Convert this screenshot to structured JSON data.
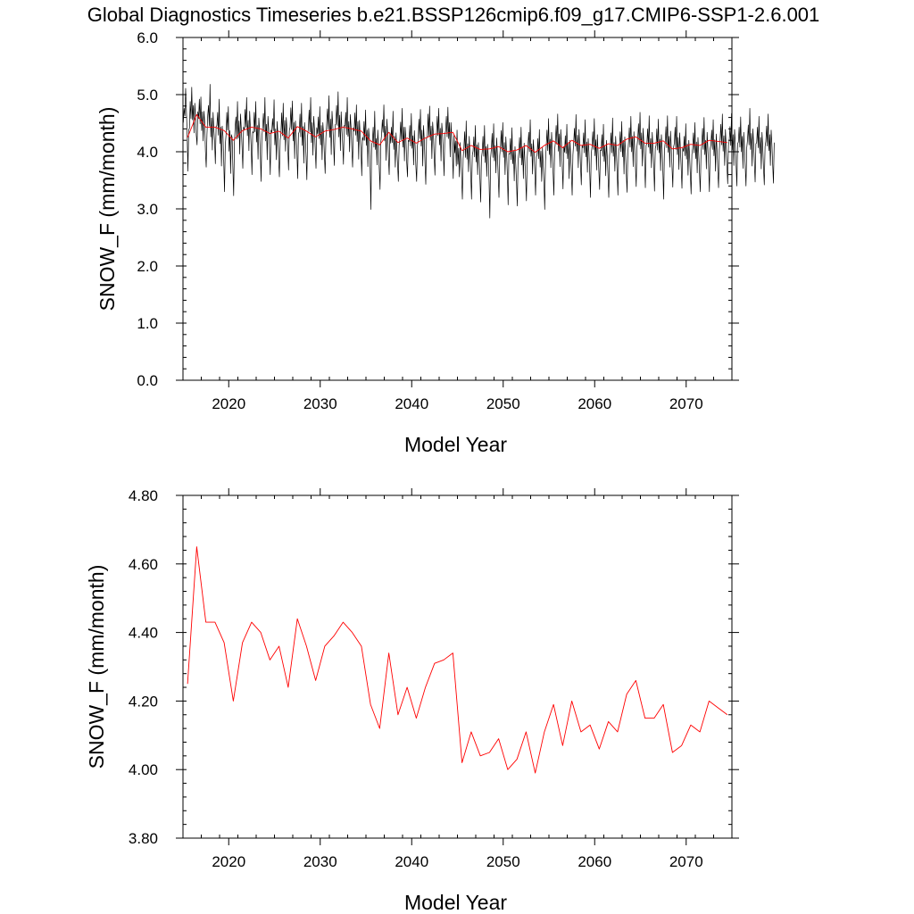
{
  "title": "Global Diagnostics Timeseries b.e21.BSSP126cmip6.f09_g17.CMIP6-SSP1-2.6.001",
  "colors": {
    "monthly": "#000000",
    "annual": "#ff0000",
    "axis": "#000000"
  },
  "chart_data": [
    {
      "type": "line",
      "xlabel": "Model Year",
      "ylabel": "SNOW_F (mm/month)",
      "xlim": [
        2015,
        2075
      ],
      "ylim": [
        0.0,
        6.0
      ],
      "x_ticks": [
        2020,
        2030,
        2040,
        2050,
        2060,
        2070
      ],
      "x_tick_labels": [
        "2020",
        "2030",
        "2040",
        "2050",
        "2060",
        "2070"
      ],
      "y_ticks": [
        0.0,
        1.0,
        2.0,
        3.0,
        4.0,
        5.0,
        6.0
      ],
      "y_tick_labels": [
        "0.0",
        "1.0",
        "2.0",
        "3.0",
        "4.0",
        "5.0",
        "6.0"
      ],
      "grid": false,
      "series": [
        {
          "color": "#000000",
          "x_start": 2015.04,
          "x_step": 0.0833333,
          "values": [
            4.51,
            4.76,
            4.63,
            5.11,
            4.72,
            4.31,
            3.66,
            4.38,
            4.41,
            4.88,
            4.58,
            5.13,
            4.56,
            4.81,
            4.33,
            4.85,
            4.64,
            4.29,
            4.12,
            4.7,
            4.58,
            4.92,
            4.49,
            4.96,
            4.37,
            4.7,
            4.19,
            4.71,
            4.52,
            4.01,
            3.73,
            4.31,
            4.64,
            4.81,
            4.45,
            5.18,
            4.26,
            4.59,
            4.03,
            4.69,
            4.38,
            4.17,
            3.79,
            4.44,
            4.46,
            4.69,
            4.29,
            4.92,
            4.14,
            4.43,
            3.75,
            4.45,
            4.27,
            3.83,
            3.3,
            4.11,
            4.29,
            4.69,
            4.38,
            4.79,
            4.01,
            4.37,
            3.62,
            4.3,
            4.25,
            3.71,
            3.23,
            4.15,
            4.45,
            4.61,
            4.22,
            4.88,
            4.24,
            4.54,
            3.96,
            4.66,
            4.4,
            4.09,
            3.71,
            4.43,
            4.38,
            4.74,
            4.43,
            4.95,
            4.28,
            4.55,
            4.02,
            4.71,
            4.39,
            4.08,
            3.6,
            4.35,
            4.33,
            4.69,
            4.35,
            4.88,
            4.17,
            4.46,
            3.87,
            4.59,
            4.36,
            3.96,
            3.48,
            4.26,
            4.42,
            4.67,
            4.35,
            4.95,
            4.19,
            4.48,
            3.86,
            4.62,
            4.38,
            4.04,
            3.6,
            4.38,
            4.34,
            4.58,
            4.37,
            4.91,
            4.12,
            4.4,
            3.86,
            4.53,
            4.28,
            3.86,
            3.56,
            4.2,
            4.32,
            4.68,
            4.28,
            4.85,
            4.21,
            4.55,
            4.01,
            4.6,
            4.39,
            4.07,
            3.68,
            4.37,
            4.43,
            4.77,
            4.39,
            4.89,
            4.19,
            4.51,
            3.88,
            4.54,
            4.3,
            3.97,
            3.53,
            4.31,
            4.35,
            4.66,
            4.26,
            4.85,
            4.11,
            4.44,
            3.8,
            4.51,
            4.24,
            3.9,
            3.51,
            4.28,
            4.42,
            4.73,
            4.35,
            4.95,
            4.16,
            4.51,
            3.94,
            4.62,
            4.4,
            4.04,
            3.71,
            4.42,
            4.31,
            4.61,
            4.23,
            4.79,
            4.12,
            4.46,
            3.86,
            4.51,
            4.29,
            3.94,
            3.62,
            4.25,
            4.5,
            4.75,
            4.39,
            4.98,
            4.25,
            4.57,
            3.95,
            4.71,
            4.46,
            4.17,
            3.76,
            4.47,
            4.48,
            4.81,
            4.46,
            5.05,
            4.26,
            4.64,
            4.02,
            4.7,
            4.38,
            4.13,
            3.78,
            4.46,
            4.45,
            4.69,
            4.3,
            4.95,
            4.27,
            4.53,
            4.0,
            4.65,
            4.42,
            4.05,
            3.73,
            4.42,
            4.36,
            4.68,
            4.29,
            4.82,
            4.18,
            4.53,
            3.87,
            4.55,
            4.27,
            4.05,
            3.58,
            4.25,
            4.2,
            4.53,
            4.2,
            4.73,
            4.11,
            4.38,
            3.74,
            4.41,
            4.23,
            3.72,
            2.99,
            4.13,
            4.17,
            4.43,
            4.08,
            4.71,
            4.04,
            4.23,
            3.77,
            4.38,
            4.1,
            3.7,
            3.34,
            4.17,
            4.29,
            4.56,
            4.34,
            4.82,
            4.19,
            4.45,
            3.85,
            4.57,
            4.31,
            3.89,
            3.6,
            4.33,
            4.15,
            4.43,
            4.16,
            4.71,
            4.04,
            4.27,
            3.73,
            4.33,
            4.05,
            3.78,
            3.48,
            4.11,
            4.23,
            4.52,
            4.21,
            4.76,
            4.08,
            4.43,
            3.84,
            4.43,
            4.2,
            3.81,
            3.56,
            4.2,
            4.18,
            4.46,
            4.1,
            4.67,
            4.06,
            4.28,
            3.77,
            4.37,
            4.1,
            3.74,
            3.48,
            4.1,
            4.22,
            4.57,
            4.23,
            4.74,
            4.1,
            4.38,
            3.75,
            4.46,
            4.21,
            3.79,
            3.43,
            4.23,
            4.27,
            4.66,
            4.26,
            4.8,
            4.2,
            4.45,
            3.88,
            4.52,
            4.3,
            3.91,
            3.59,
            4.24,
            4.3,
            4.62,
            4.28,
            4.76,
            4.12,
            4.41,
            3.84,
            4.5,
            4.3,
            4.0,
            3.58,
            4.31,
            4.36,
            4.62,
            4.26,
            4.78,
            4.23,
            4.51,
            3.91,
            4.51,
            4.25,
            3.95,
            3.53,
            4.3,
            3.98,
            4.19,
            3.75,
            4.38,
            3.78,
            4.06,
            3.56,
            4.16,
            3.86,
            3.56,
            3.17,
            3.88,
            4.08,
            4.35,
            3.9,
            4.54,
            3.87,
            4.14,
            3.65,
            4.27,
            3.96,
            3.59,
            3.17,
            3.94,
            4.01,
            4.26,
            3.91,
            4.46,
            3.82,
            4.12,
            3.6,
            4.16,
            3.9,
            3.53,
            3.12,
            3.88,
            4.0,
            4.27,
            3.92,
            4.46,
            3.81,
            4.09,
            3.57,
            4.13,
            3.89,
            3.49,
            2.84,
            3.89,
            4.05,
            4.32,
            3.9,
            4.49,
            3.84,
            4.11,
            3.63,
            4.24,
            3.92,
            3.58,
            3.2,
            3.93,
            4.1,
            4.37,
            4.0,
            4.51,
            3.9,
            4.16,
            3.6,
            4.26,
            3.97,
            3.6,
            3.07,
            3.97,
            3.96,
            4.23,
            3.86,
            4.42,
            3.79,
            4.02,
            3.49,
            4.09,
            3.78,
            3.46,
            3.05,
            3.84,
            3.99,
            4.25,
            3.89,
            4.43,
            3.77,
            4.07,
            3.53,
            4.15,
            3.84,
            3.51,
            3.14,
            3.89,
            4.11,
            4.34,
            4.0,
            4.56,
            3.92,
            4.14,
            3.61,
            4.21,
            3.98,
            3.65,
            3.24,
            3.91,
            3.95,
            4.23,
            3.88,
            4.39,
            3.73,
            4.01,
            3.48,
            4.07,
            3.77,
            3.46,
            2.99,
            3.83,
            4.1,
            4.38,
            4.02,
            4.58,
            3.95,
            4.22,
            3.72,
            4.34,
            4.03,
            3.63,
            3.24,
            4.02,
            4.17,
            4.46,
            4.13,
            4.66,
            4.01,
            4.31,
            3.74,
            4.39,
            4.12,
            3.73,
            3.35,
            4.09,
            3.99,
            4.28,
            3.97,
            4.48,
            3.88,
            4.16,
            3.53,
            4.2,
            3.93,
            3.63,
            3.24,
            3.95,
            4.17,
            4.41,
            4.1,
            4.65,
            4.01,
            4.29,
            3.72,
            4.39,
            4.08,
            3.74,
            3.42,
            4.11,
            4.07,
            4.33,
            3.98,
            4.56,
            3.91,
            4.17,
            3.64,
            4.23,
            3.99,
            3.65,
            3.2,
            3.96,
            4.09,
            4.35,
            4.04,
            4.58,
            3.93,
            4.21,
            3.68,
            4.3,
            3.98,
            3.66,
            3.34,
            4.03,
            4.02,
            4.3,
            3.92,
            4.48,
            3.83,
            4.11,
            3.58,
            4.2,
            3.92,
            3.58,
            3.2,
            3.93,
            4.09,
            4.33,
            3.98,
            4.59,
            3.92,
            4.16,
            3.66,
            4.27,
            3.99,
            3.64,
            3.24,
            4.02,
            4.07,
            4.35,
            4.0,
            4.53,
            3.91,
            4.2,
            3.61,
            4.26,
            3.98,
            3.62,
            3.29,
            3.97,
            4.18,
            4.42,
            4.08,
            4.62,
            4.0,
            4.27,
            3.74,
            4.35,
            4.06,
            3.74,
            3.39,
            4.09,
            4.23,
            4.49,
            4.12,
            4.69,
            4.05,
            4.33,
            3.75,
            4.41,
            4.14,
            3.8,
            3.37,
            4.11,
            4.14,
            4.4,
            4.08,
            4.63,
            3.97,
            4.23,
            3.72,
            4.34,
            4.05,
            3.74,
            3.31,
            4.06,
            4.11,
            4.4,
            4.03,
            4.57,
            3.98,
            4.22,
            3.67,
            4.3,
            4.04,
            3.65,
            3.17,
            4.01,
            4.17,
            4.44,
            4.07,
            4.63,
            3.99,
            4.27,
            3.73,
            4.36,
            4.06,
            3.72,
            3.38,
            4.08,
            4.15,
            4.43,
            4.04,
            4.62,
            3.95,
            4.25,
            3.69,
            4.33,
            4.04,
            3.72,
            3.36,
            4.06,
            4.01,
            4.27,
            3.93,
            4.49,
            3.87,
            4.14,
            3.59,
            4.2,
            3.93,
            3.6,
            3.26,
            3.95,
            4.06,
            4.33,
            3.98,
            4.51,
            3.88,
            4.17,
            3.63,
            4.25,
            3.96,
            3.63,
            3.3,
            3.97,
            4.13,
            4.41,
            4.04,
            4.6,
            3.95,
            4.2,
            3.7,
            4.34,
            4.05,
            3.72,
            3.3,
            4.05,
            4.13,
            4.38,
            4.04,
            4.56,
            3.93,
            4.21,
            3.66,
            4.31,
            4.02,
            3.68,
            3.37,
            4.03,
            4.21,
            4.48,
            4.12,
            4.66,
            4.01,
            4.28,
            3.76,
            4.39,
            4.1,
            3.75,
            3.44,
            4.12,
            4.19,
            4.44,
            4.11,
            4.67,
            4.03,
            4.3,
            3.76,
            4.39,
            4.13,
            3.79,
            3.4,
            4.14,
            4.17,
            4.43,
            4.08,
            4.61,
            4.0,
            4.27,
            3.71,
            4.34,
            4.07,
            3.74,
            3.4,
            4.07,
            4.21,
            4.47,
            4.12,
            4.76,
            4.04,
            4.32,
            3.75,
            4.4,
            4.13,
            3.8,
            3.47,
            4.14,
            4.16,
            4.43,
            4.07,
            4.62,
            3.97,
            4.25,
            3.7,
            4.34,
            4.07,
            3.71,
            3.42,
            4.09,
            4.18,
            4.45,
            4.1,
            4.66,
            4.02,
            4.3,
            3.76,
            4.38,
            4.12,
            3.78,
            3.45,
            4.16
          ]
        },
        {
          "color": "#ff0000",
          "x_start": 2015.5,
          "x_step": 1,
          "values": [
            4.25,
            4.65,
            4.43,
            4.43,
            4.37,
            4.2,
            4.37,
            4.43,
            4.4,
            4.32,
            4.36,
            4.24,
            4.44,
            4.36,
            4.26,
            4.36,
            4.39,
            4.43,
            4.4,
            4.36,
            4.19,
            4.12,
            4.34,
            4.16,
            4.24,
            4.15,
            4.24,
            4.31,
            4.32,
            4.34,
            4.02,
            4.11,
            4.04,
            4.05,
            4.09,
            4.0,
            4.03,
            4.11,
            3.99,
            4.11,
            4.19,
            4.07,
            4.2,
            4.11,
            4.13,
            4.06,
            4.14,
            4.11,
            4.22,
            4.26,
            4.15,
            4.15,
            4.19,
            4.05,
            4.07,
            4.13,
            4.11,
            4.2,
            4.18,
            4.16
          ]
        }
      ]
    },
    {
      "type": "line",
      "xlabel": "Model Year",
      "ylabel": "SNOW_F (mm/month)",
      "xlim": [
        2015,
        2075
      ],
      "ylim": [
        3.8,
        4.8
      ],
      "x_ticks": [
        2020,
        2030,
        2040,
        2050,
        2060,
        2070
      ],
      "x_tick_labels": [
        "2020",
        "2030",
        "2040",
        "2050",
        "2060",
        "2070"
      ],
      "y_ticks": [
        3.8,
        4.0,
        4.2,
        4.4,
        4.6,
        4.8
      ],
      "y_tick_labels": [
        "3.80",
        "4.00",
        "4.20",
        "4.40",
        "4.60",
        "4.80"
      ],
      "grid": false,
      "series": [
        {
          "color": "#ff0000",
          "x_start": 2015.5,
          "x_step": 1,
          "values": [
            4.25,
            4.65,
            4.43,
            4.43,
            4.37,
            4.2,
            4.37,
            4.43,
            4.4,
            4.32,
            4.36,
            4.24,
            4.44,
            4.36,
            4.26,
            4.36,
            4.39,
            4.43,
            4.4,
            4.36,
            4.19,
            4.12,
            4.34,
            4.16,
            4.24,
            4.15,
            4.24,
            4.31,
            4.32,
            4.34,
            4.02,
            4.11,
            4.04,
            4.05,
            4.09,
            4.0,
            4.03,
            4.11,
            3.99,
            4.11,
            4.19,
            4.07,
            4.2,
            4.11,
            4.13,
            4.06,
            4.14,
            4.11,
            4.22,
            4.26,
            4.15,
            4.15,
            4.19,
            4.05,
            4.07,
            4.13,
            4.11,
            4.2,
            4.18,
            4.16
          ]
        }
      ]
    }
  ]
}
